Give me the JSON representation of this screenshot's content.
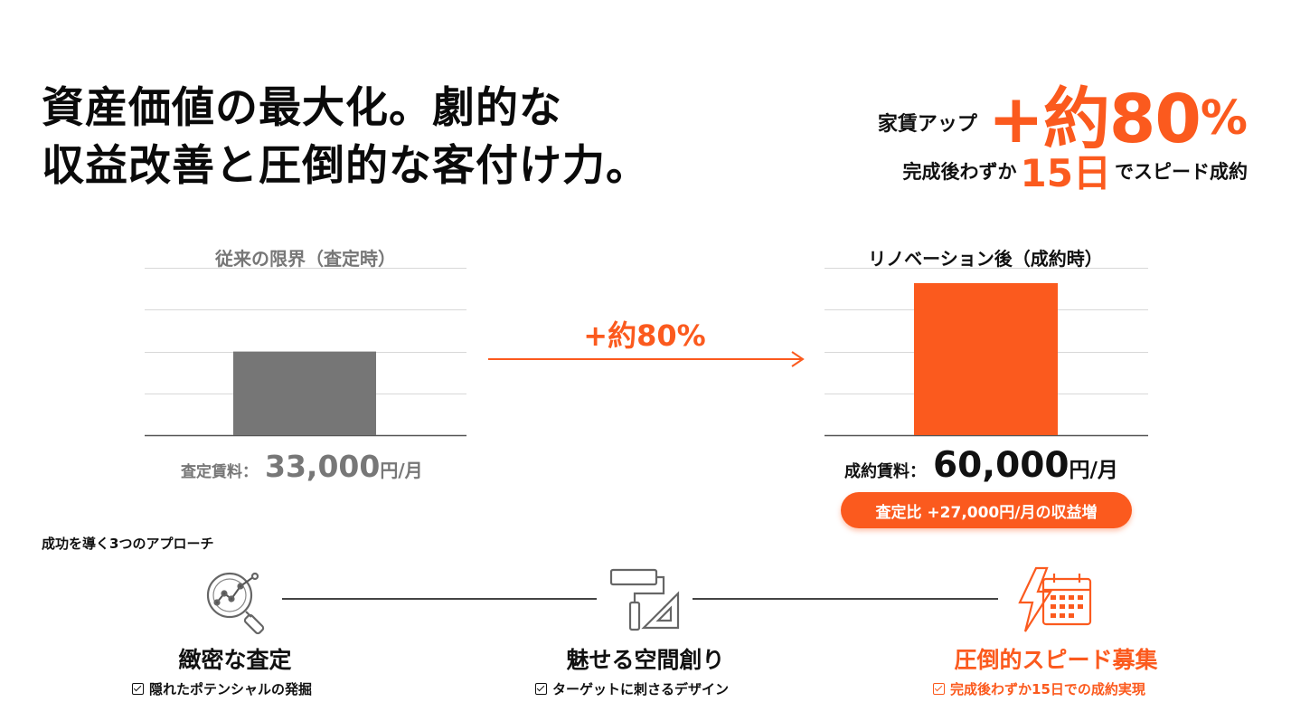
{
  "headline": {
    "line1": "資産価値の最大化。劇的な",
    "line2": "収益改善と圧倒的な客付け力。"
  },
  "kpi": {
    "rent_label": "家賃アップ",
    "rent_value": "+約80",
    "rent_unit": "%",
    "contract_prefix": "完成後わずか",
    "contract_days": "15日",
    "contract_suffix": "でスピード成約"
  },
  "chart_data": {
    "type": "bar",
    "panels": [
      {
        "title": "従来の限界（査定時）",
        "value": 33000,
        "color": "#767676",
        "caption_label": "査定賃料：",
        "caption_value": "33,000",
        "caption_unit": "円/月"
      },
      {
        "title": "リノベーション後（成約時）",
        "value": 60000,
        "color": "#fb5a1e",
        "caption_label": "成約賃料：",
        "caption_value": "60,000",
        "caption_unit": "円/月"
      }
    ],
    "arrow_label": "+約80%",
    "ylim": [
      0,
      70000
    ],
    "gridlines": [
      0,
      16500,
      33000,
      49500,
      66000
    ],
    "grid": true,
    "accent": "#fb5a1e",
    "neutral": "#767676"
  },
  "pill_text": "査定比 +27,000円/月の収益増",
  "approach": {
    "title": "成功を導く3つのアプローチ",
    "steps": [
      {
        "icon": "magnifier-analytics-icon",
        "title": "緻密な査定",
        "sub": "隠れたポテンシャルの発掘",
        "color": "#111111"
      },
      {
        "icon": "paint-roller-ruler-icon",
        "title": "魅せる空間創り",
        "sub": "ターゲットに刺さるデザイン",
        "color": "#111111"
      },
      {
        "icon": "lightning-calendar-icon",
        "title": "圧倒的スピード募集",
        "sub": "完成後わずか15日での成約実現",
        "color": "#fb5a1e"
      }
    ]
  }
}
